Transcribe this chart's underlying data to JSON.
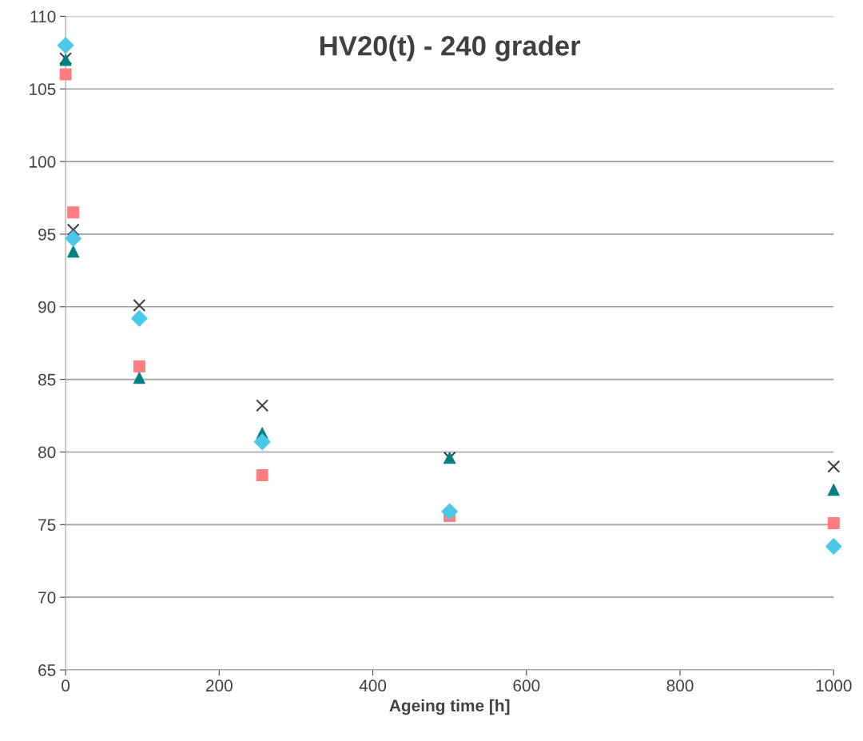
{
  "chart_data": {
    "type": "scatter",
    "title": "HV20(t) - 240 grader",
    "xlabel": "Ageing time [h]",
    "xlim": [
      0,
      1000
    ],
    "xticks": [
      0,
      200,
      400,
      600,
      800,
      1000
    ],
    "ylim": [
      65,
      110
    ],
    "yticks": [
      65,
      70,
      75,
      80,
      85,
      90,
      95,
      100,
      105,
      110
    ],
    "grid": "y",
    "legend": false,
    "series": [
      {
        "marker": "cross",
        "color": "#404040",
        "x": [
          0,
          10,
          96,
          256,
          500,
          1000
        ],
        "values": [
          107.1,
          95.3,
          90.1,
          83.2,
          79.6,
          79.0
        ]
      },
      {
        "marker": "square",
        "color": "#ff7c80",
        "x": [
          0,
          10,
          96,
          256,
          500,
          1000
        ],
        "values": [
          106.0,
          96.5,
          85.9,
          78.4,
          75.6,
          75.1
        ]
      },
      {
        "marker": "triangle",
        "color": "#008080",
        "x": [
          0,
          10,
          96,
          256,
          500,
          1000
        ],
        "values": [
          107.0,
          93.8,
          85.1,
          81.3,
          79.6,
          77.4
        ]
      },
      {
        "marker": "diamond",
        "color": "#4bc8e8",
        "x": [
          0,
          10,
          96,
          256,
          500,
          1000
        ],
        "values": [
          108.0,
          94.7,
          89.2,
          80.7,
          75.9,
          73.5
        ]
      }
    ]
  }
}
